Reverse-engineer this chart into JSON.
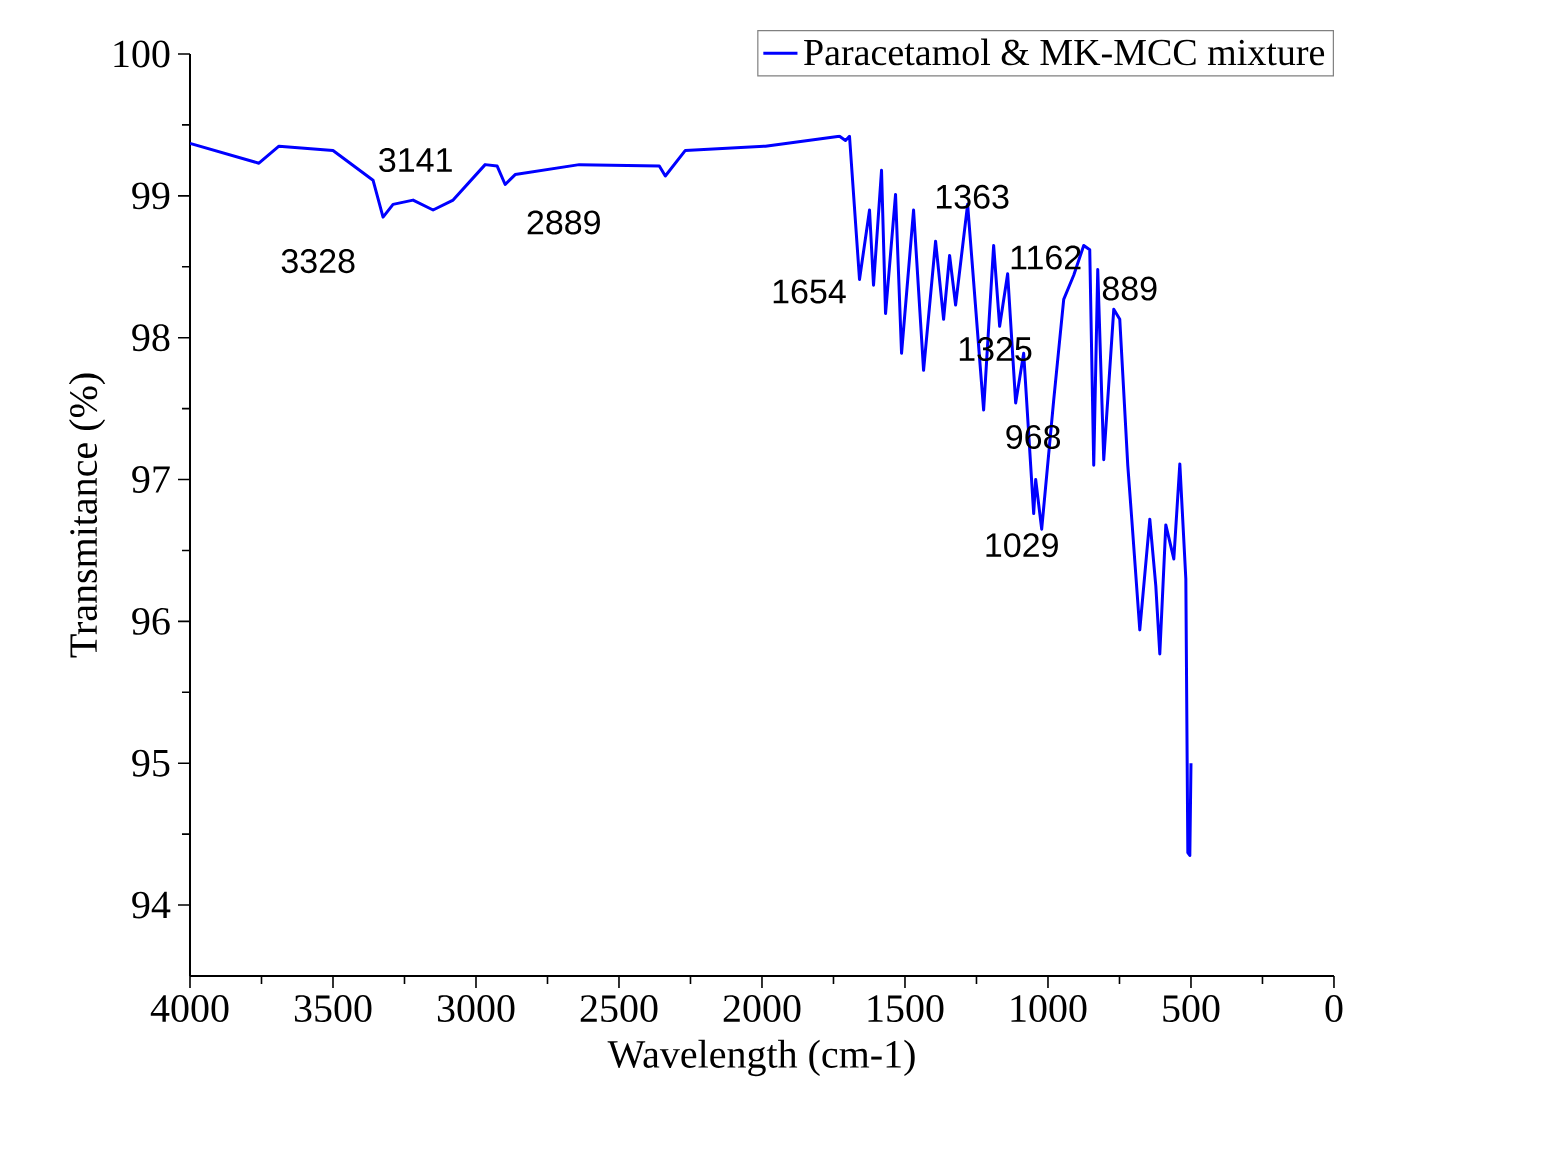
{
  "chart_data": {
    "type": "line",
    "xlabel": "Wavelength (cm-1)",
    "ylabel": "Transmitance (%)",
    "xlim": [
      4000,
      0
    ],
    "ylim": [
      93.5,
      100
    ],
    "xticks": [
      4000,
      3500,
      3000,
      2500,
      2000,
      1500,
      1000,
      500,
      0
    ],
    "yticks": [
      94,
      95,
      96,
      97,
      98,
      99,
      100
    ],
    "grid": false,
    "legend": "top right",
    "marker": "none",
    "line_style": "solid",
    "x": [
      4000,
      3759,
      3689,
      3500,
      3360,
      3325,
      3290,
      3220,
      3150,
      3080,
      2968,
      2926,
      2898,
      2863,
      2639,
      2359,
      2338,
      2268,
      1988,
      1729,
      1708,
      1694,
      1659,
      1624,
      1610,
      1582,
      1568,
      1533,
      1512,
      1470,
      1435,
      1393,
      1365,
      1344,
      1323,
      1281,
      1239,
      1225,
      1190,
      1169,
      1141,
      1113,
      1085,
      1050,
      1043,
      1022,
      980,
      945,
      910,
      875,
      854,
      840,
      826,
      805,
      770,
      749,
      721,
      707,
      679,
      644,
      623,
      609,
      588,
      560,
      539,
      518,
      511,
      504,
      500
    ],
    "series": [
      {
        "name": "Paracetamol & MK-MCC mixture",
        "color": "#0000ff",
        "values": [
          99.37,
          99.23,
          99.35,
          99.32,
          99.11,
          98.85,
          98.94,
          98.97,
          98.9,
          98.97,
          99.22,
          99.21,
          99.08,
          99.15,
          99.22,
          99.21,
          99.14,
          99.32,
          99.35,
          99.42,
          99.39,
          99.42,
          98.41,
          98.9,
          98.37,
          99.18,
          98.17,
          99.01,
          97.89,
          98.9,
          97.77,
          98.68,
          98.13,
          98.58,
          98.23,
          98.94,
          97.85,
          97.49,
          98.65,
          98.08,
          98.45,
          97.54,
          97.89,
          96.76,
          97.0,
          96.65,
          97.56,
          98.27,
          98.44,
          98.65,
          98.62,
          97.1,
          98.48,
          97.14,
          98.2,
          98.13,
          97.1,
          96.72,
          95.94,
          96.72,
          96.25,
          95.77,
          96.68,
          96.44,
          97.11,
          96.3,
          94.37,
          94.35,
          95.0
        ]
      }
    ],
    "annotations": [
      {
        "text": "3328",
        "x": 3328,
        "y": 98.85
      },
      {
        "text": "3141",
        "x": 3141,
        "y": 98.9
      },
      {
        "text": "2889",
        "x": 2889,
        "y": 99.08
      },
      {
        "text": "1654",
        "x": 1654,
        "y": 98.41
      },
      {
        "text": "1363",
        "x": 1363,
        "y": 98.5
      },
      {
        "text": "1325",
        "x": 1325,
        "y": 98.23
      },
      {
        "text": "1162",
        "x": 1162,
        "y": 98.1
      },
      {
        "text": "889",
        "x": 889,
        "y": 98.6
      },
      {
        "text": "968",
        "x": 968,
        "y": 97.3
      },
      {
        "text": "1029",
        "x": 1029,
        "y": 96.65
      }
    ]
  }
}
